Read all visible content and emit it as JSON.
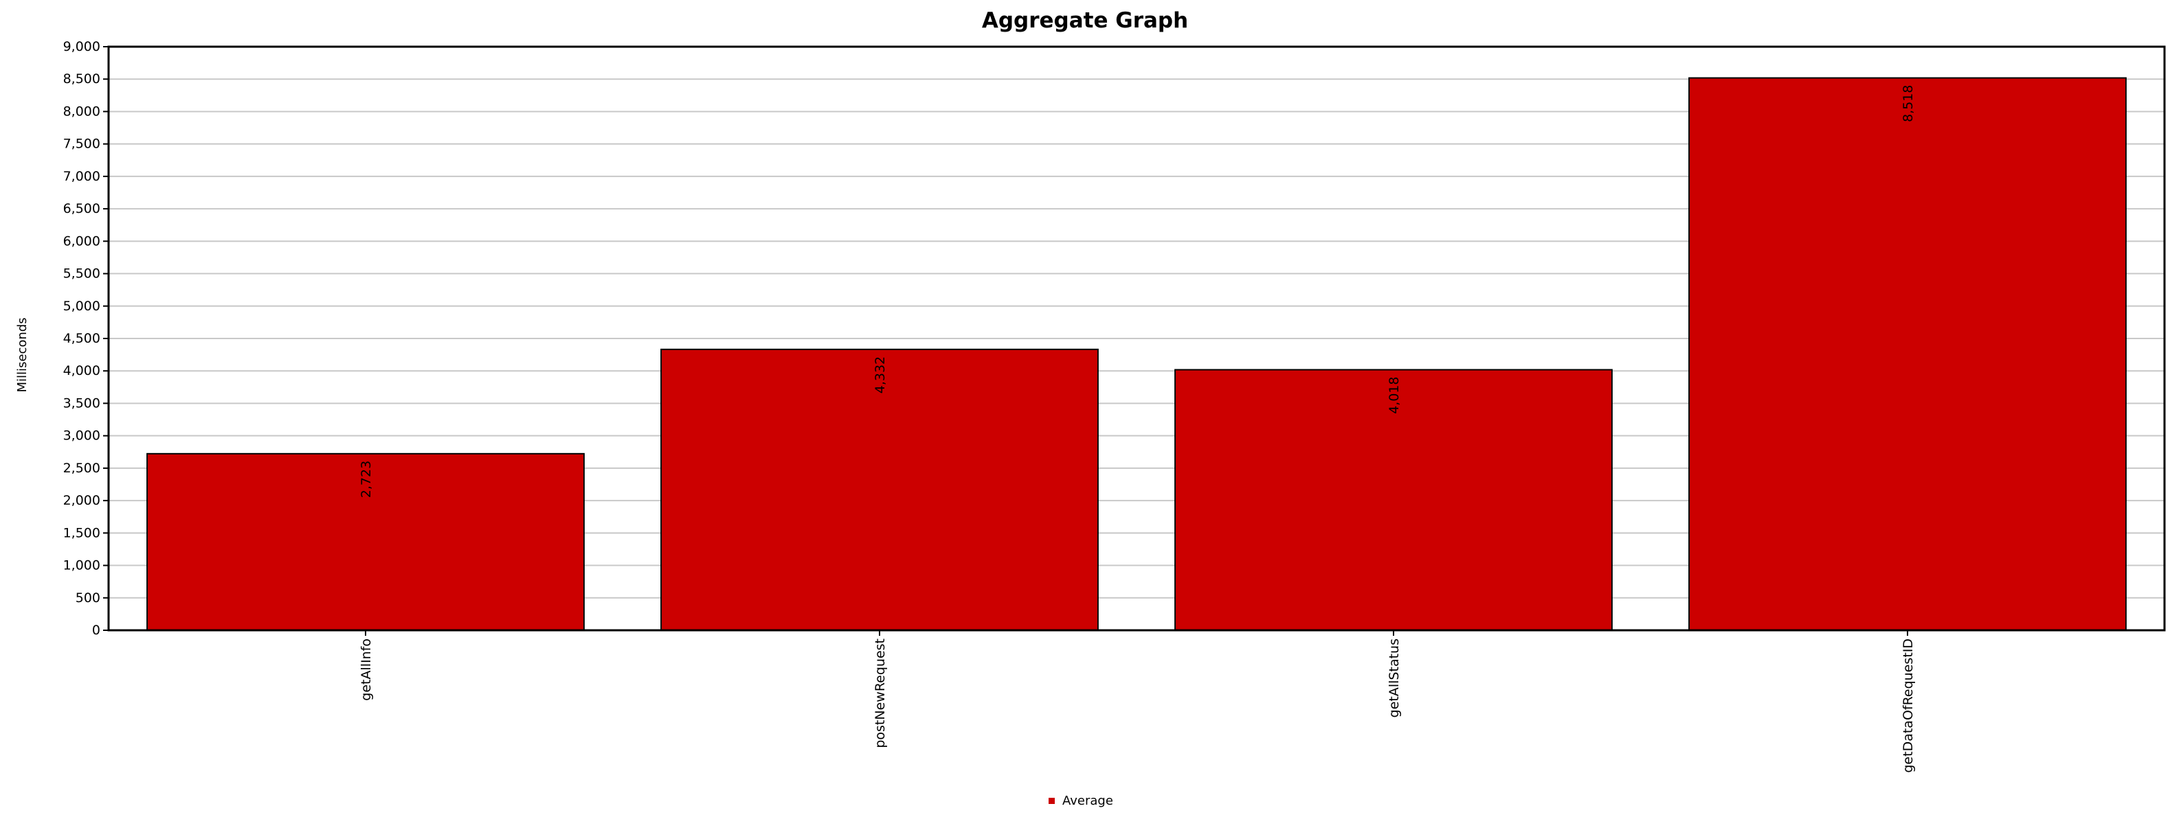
{
  "chart_data": {
    "type": "bar",
    "title": "Aggregate Graph",
    "xlabel": "",
    "ylabel": "Milliseconds",
    "categories": [
      "getAllInfo",
      "postNewRequest",
      "getAllStatus",
      "getDataOfRequestID"
    ],
    "series": [
      {
        "name": "Average",
        "values": [
          2723,
          4332,
          4018,
          8518
        ],
        "value_labels": [
          "2,723",
          "4,332",
          "4,018",
          "8,518"
        ]
      }
    ],
    "ylim": [
      0,
      9000
    ],
    "y_ticks": [
      0,
      500,
      1000,
      1500,
      2000,
      2500,
      3000,
      3500,
      4000,
      4500,
      5000,
      5500,
      6000,
      6500,
      7000,
      7500,
      8000,
      8500,
      9000
    ],
    "y_tick_labels": [
      "0",
      "500",
      "1,000",
      "1,500",
      "2,000",
      "2,500",
      "3,000",
      "3,500",
      "4,000",
      "4,500",
      "5,000",
      "5,500",
      "6,000",
      "6,500",
      "7,000",
      "7,500",
      "8,000",
      "8,500",
      "9,000"
    ],
    "grid": true,
    "legend": "bottom-center",
    "colors": {
      "bar": "#cc0000",
      "grid": "#c8c8c8",
      "axis": "#000000",
      "text": "#000000"
    }
  }
}
